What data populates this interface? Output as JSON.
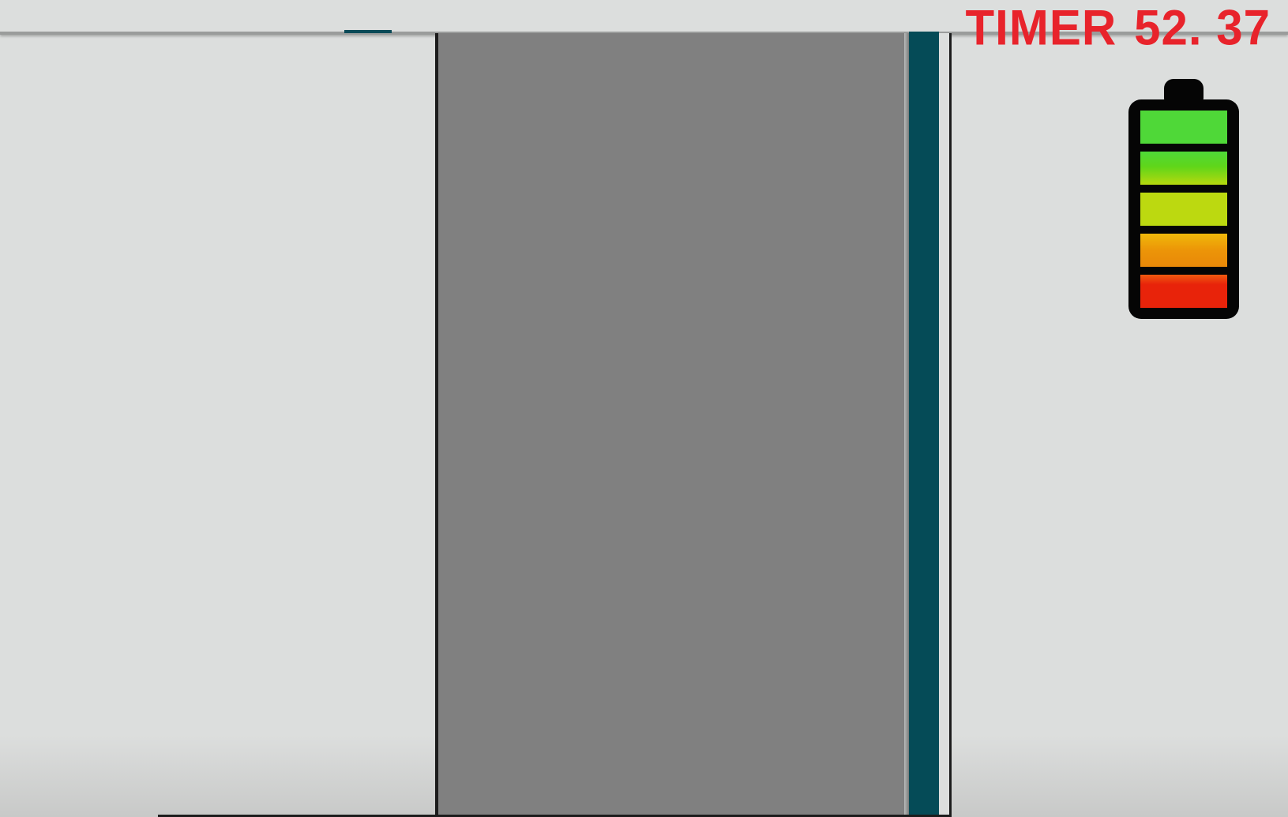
{
  "hud": {
    "timer_label": "TIMER",
    "timer_value": "52. 37",
    "timer_color": "#e8232b"
  },
  "battery": {
    "icon": "battery-icon",
    "segments_total": 5,
    "segments_filled": 5,
    "segment_colors": [
      "#4fd838",
      "#6ad612",
      "#bcd910",
      "#ec9508",
      "#e8230a"
    ]
  },
  "colors": {
    "background": "#dcdedd",
    "road": "#808080",
    "rail": "#054b57"
  }
}
